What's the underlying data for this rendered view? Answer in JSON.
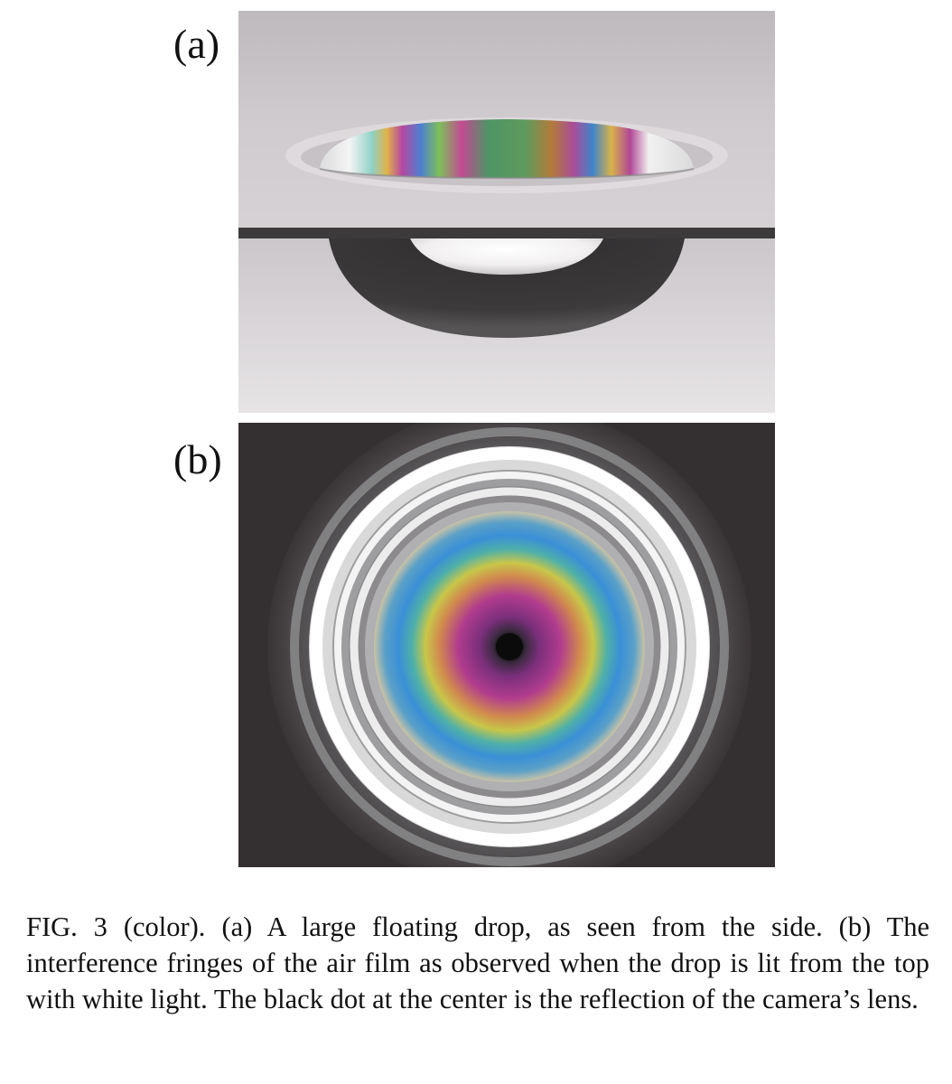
{
  "figure": {
    "panel_a_label": "(a)",
    "panel_b_label": "(b)",
    "caption_label": "FIG. 3 (color).",
    "caption_text": "(a) A large floating drop, as seen from the side. (b) The interference fringes of the air film as observed when the drop is lit from the top with white light. The black dot at the center is the reflection of the camera’s lens."
  }
}
